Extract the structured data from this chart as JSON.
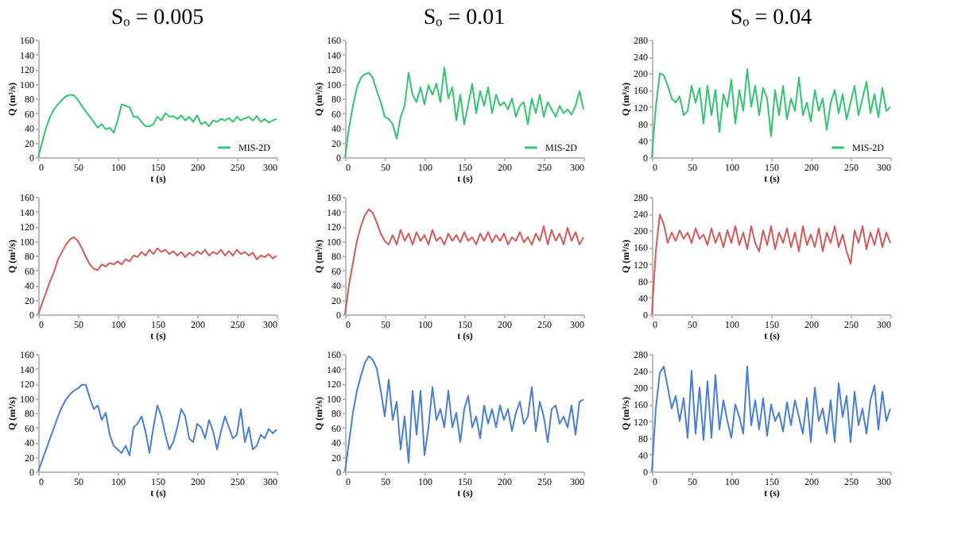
{
  "chart_data": [
    {
      "type": "line",
      "title": "Sₒ = 0.005",
      "xlabel": "t (s)",
      "ylabel": "Q (m³/s)",
      "x": [
        0,
        5,
        10,
        15,
        20,
        25,
        30,
        35,
        40,
        45,
        50,
        55,
        60,
        65,
        70,
        75,
        80,
        85,
        90,
        95,
        100,
        105,
        110,
        115,
        120,
        125,
        130,
        135,
        140,
        145,
        150,
        155,
        160,
        165,
        170,
        175,
        180,
        185,
        190,
        195,
        200,
        205,
        210,
        215,
        220,
        225,
        230,
        235,
        240,
        245,
        250,
        255,
        260,
        265,
        270,
        275,
        280,
        285,
        290,
        295,
        300
      ],
      "xlim": [
        0,
        300
      ],
      "xticks": [
        0,
        50,
        100,
        150,
        200,
        250,
        300
      ],
      "ylim": [
        0,
        160
      ],
      "yticks": [
        0,
        20,
        40,
        60,
        80,
        100,
        120,
        140,
        160
      ],
      "legend": "bottom right",
      "series": [
        {
          "name": "MIS-2D",
          "color": "#33c472",
          "values": [
            0,
            20,
            40,
            55,
            65,
            72,
            78,
            83,
            85,
            84,
            78,
            70,
            62,
            55,
            48,
            40,
            45,
            38,
            40,
            33,
            50,
            72,
            70,
            68,
            55,
            55,
            48,
            42,
            42,
            45,
            55,
            50,
            60,
            55,
            56,
            52,
            57,
            50,
            55,
            48,
            57,
            45,
            48,
            42,
            50,
            48,
            52,
            50,
            53,
            48,
            55,
            50,
            53,
            55,
            50,
            56,
            48,
            52,
            47,
            50,
            52
          ]
        }
      ]
    },
    {
      "type": "line",
      "title": "Sₒ = 0.01",
      "xlabel": "t (s)",
      "ylabel": "Q (m³/s)",
      "x": [
        0,
        5,
        10,
        15,
        20,
        25,
        30,
        35,
        40,
        45,
        50,
        55,
        60,
        65,
        70,
        75,
        80,
        85,
        90,
        95,
        100,
        105,
        110,
        115,
        120,
        125,
        130,
        135,
        140,
        145,
        150,
        155,
        160,
        165,
        170,
        175,
        180,
        185,
        190,
        195,
        200,
        205,
        210,
        215,
        220,
        225,
        230,
        235,
        240,
        245,
        250,
        255,
        260,
        265,
        270,
        275,
        280,
        285,
        290,
        295,
        300
      ],
      "xlim": [
        0,
        300
      ],
      "xticks": [
        0,
        50,
        100,
        150,
        200,
        250,
        300
      ],
      "ylim": [
        0,
        160
      ],
      "yticks": [
        0,
        20,
        40,
        60,
        80,
        100,
        120,
        140,
        160
      ],
      "legend": "bottom right",
      "series": [
        {
          "name": "MIS-2D",
          "color": "#33c472",
          "values": [
            0,
            40,
            70,
            95,
            108,
            113,
            115,
            108,
            90,
            75,
            55,
            52,
            45,
            25,
            55,
            70,
            115,
            85,
            75,
            95,
            72,
            98,
            85,
            100,
            75,
            122,
            80,
            95,
            50,
            85,
            45,
            72,
            100,
            60,
            90,
            70,
            95,
            60,
            85,
            70,
            75,
            65,
            80,
            55,
            70,
            75,
            45,
            80,
            60,
            85,
            55,
            75,
            65,
            55,
            70,
            60,
            65,
            58,
            70,
            90,
            65
          ]
        }
      ]
    },
    {
      "type": "line",
      "title": "Sₒ = 0.04",
      "xlabel": "t (s)",
      "ylabel": "Q (m³/s)",
      "x": [
        0,
        5,
        10,
        15,
        20,
        25,
        30,
        35,
        40,
        45,
        50,
        55,
        60,
        65,
        70,
        75,
        80,
        85,
        90,
        95,
        100,
        105,
        110,
        115,
        120,
        125,
        130,
        135,
        140,
        145,
        150,
        155,
        160,
        165,
        170,
        175,
        180,
        185,
        190,
        195,
        200,
        205,
        210,
        215,
        220,
        225,
        230,
        235,
        240,
        245,
        250,
        255,
        260,
        265,
        270,
        275,
        280,
        285,
        290,
        295,
        300
      ],
      "xlim": [
        0,
        300
      ],
      "xticks": [
        0,
        50,
        100,
        150,
        200,
        250,
        300
      ],
      "ylim": [
        0,
        280
      ],
      "yticks": [
        0,
        40,
        80,
        120,
        160,
        200,
        240,
        280
      ],
      "legend": "bottom right",
      "series": [
        {
          "name": "MIS-2D",
          "color": "#33c472",
          "values": [
            0,
            120,
            200,
            195,
            170,
            140,
            130,
            145,
            100,
            110,
            170,
            130,
            165,
            80,
            170,
            100,
            160,
            60,
            150,
            120,
            185,
            80,
            160,
            110,
            210,
            120,
            170,
            100,
            165,
            140,
            50,
            160,
            100,
            170,
            90,
            140,
            110,
            190,
            100,
            130,
            85,
            160,
            110,
            140,
            65,
            130,
            160,
            105,
            150,
            90,
            130,
            170,
            100,
            140,
            180,
            105,
            150,
            95,
            165,
            110,
            120
          ]
        }
      ]
    },
    {
      "type": "line",
      "xlabel": "t (s)",
      "ylabel": "Q (m³/s)",
      "x": [
        0,
        5,
        10,
        15,
        20,
        25,
        30,
        35,
        40,
        45,
        50,
        55,
        60,
        65,
        70,
        75,
        80,
        85,
        90,
        95,
        100,
        105,
        110,
        115,
        120,
        125,
        130,
        135,
        140,
        145,
        150,
        155,
        160,
        165,
        170,
        175,
        180,
        185,
        190,
        195,
        200,
        205,
        210,
        215,
        220,
        225,
        230,
        235,
        240,
        245,
        250,
        255,
        260,
        265,
        270,
        275,
        280,
        285,
        290,
        295,
        300
      ],
      "xlim": [
        0,
        300
      ],
      "xticks": [
        0,
        50,
        100,
        150,
        200,
        250,
        300
      ],
      "ylim": [
        0,
        160
      ],
      "yticks": [
        0,
        20,
        40,
        60,
        80,
        100,
        120,
        140,
        160
      ],
      "series": [
        {
          "color": "#d45a5a",
          "values": [
            0,
            15,
            30,
            45,
            58,
            75,
            85,
            95,
            102,
            105,
            100,
            90,
            78,
            68,
            62,
            60,
            68,
            65,
            70,
            68,
            72,
            68,
            75,
            72,
            80,
            78,
            85,
            80,
            88,
            82,
            90,
            85,
            88,
            82,
            86,
            80,
            85,
            78,
            84,
            80,
            86,
            82,
            88,
            80,
            85,
            82,
            88,
            80,
            86,
            80,
            88,
            82,
            85,
            80,
            84,
            75,
            80,
            78,
            82,
            76,
            80
          ]
        }
      ]
    },
    {
      "type": "line",
      "xlabel": "t (s)",
      "ylabel": "Q (m³/s)",
      "x": [
        0,
        5,
        10,
        15,
        20,
        25,
        30,
        35,
        40,
        45,
        50,
        55,
        60,
        65,
        70,
        75,
        80,
        85,
        90,
        95,
        100,
        105,
        110,
        115,
        120,
        125,
        130,
        135,
        140,
        145,
        150,
        155,
        160,
        165,
        170,
        175,
        180,
        185,
        190,
        195,
        200,
        205,
        210,
        215,
        220,
        225,
        230,
        235,
        240,
        245,
        250,
        255,
        260,
        265,
        270,
        275,
        280,
        285,
        290,
        295,
        300
      ],
      "xlim": [
        0,
        300
      ],
      "xticks": [
        0,
        50,
        100,
        150,
        200,
        250,
        300
      ],
      "ylim": [
        0,
        160
      ],
      "yticks": [
        0,
        20,
        40,
        60,
        80,
        100,
        120,
        140,
        160
      ],
      "series": [
        {
          "color": "#d45a5a",
          "values": [
            0,
            40,
            70,
            100,
            120,
            135,
            143,
            138,
            125,
            110,
            100,
            95,
            108,
            95,
            115,
            100,
            110,
            95,
            112,
            100,
            108,
            95,
            115,
            100,
            105,
            95,
            110,
            100,
            108,
            98,
            112,
            100,
            105,
            95,
            110,
            100,
            112,
            98,
            108,
            100,
            110,
            95,
            105,
            100,
            112,
            98,
            105,
            95,
            110,
            100,
            120,
            95,
            115,
            100,
            110,
            95,
            118,
            100,
            112,
            95,
            105
          ]
        }
      ]
    },
    {
      "type": "line",
      "xlabel": "t (s)",
      "ylabel": "Q (m³/s)",
      "x": [
        0,
        5,
        10,
        15,
        20,
        25,
        30,
        35,
        40,
        45,
        50,
        55,
        60,
        65,
        70,
        75,
        80,
        85,
        90,
        95,
        100,
        105,
        110,
        115,
        120,
        125,
        130,
        135,
        140,
        145,
        150,
        155,
        160,
        165,
        170,
        175,
        180,
        185,
        190,
        195,
        200,
        205,
        210,
        215,
        220,
        225,
        230,
        235,
        240,
        245,
        250,
        255,
        260,
        265,
        270,
        275,
        280,
        285,
        290,
        295,
        300
      ],
      "xlim": [
        0,
        300
      ],
      "xticks": [
        0,
        50,
        100,
        150,
        200,
        250,
        300
      ],
      "ylim": [
        0,
        280
      ],
      "yticks": [
        0,
        40,
        80,
        120,
        160,
        200,
        240,
        280
      ],
      "series": [
        {
          "color": "#d45a5a",
          "values": [
            0,
            150,
            238,
            215,
            170,
            195,
            175,
            200,
            180,
            195,
            170,
            205,
            180,
            190,
            165,
            205,
            170,
            195,
            160,
            200,
            170,
            210,
            165,
            195,
            155,
            210,
            170,
            150,
            200,
            165,
            210,
            155,
            195,
            170,
            205,
            160,
            195,
            150,
            210,
            165,
            190,
            160,
            205,
            150,
            195,
            170,
            210,
            160,
            190,
            150,
            120,
            200,
            170,
            210,
            155,
            195,
            165,
            205,
            160,
            195,
            170
          ]
        }
      ]
    },
    {
      "type": "line",
      "xlabel": "t (s)",
      "ylabel": "Q (m³/s)",
      "x": [
        0,
        5,
        10,
        15,
        20,
        25,
        30,
        35,
        40,
        45,
        50,
        55,
        60,
        65,
        70,
        75,
        80,
        85,
        90,
        95,
        100,
        105,
        110,
        115,
        120,
        125,
        130,
        135,
        140,
        145,
        150,
        155,
        160,
        165,
        170,
        175,
        180,
        185,
        190,
        195,
        200,
        205,
        210,
        215,
        220,
        225,
        230,
        235,
        240,
        245,
        250,
        255,
        260,
        265,
        270,
        275,
        280,
        285,
        290,
        295,
        300
      ],
      "xlim": [
        0,
        300
      ],
      "xticks": [
        0,
        50,
        100,
        150,
        200,
        250,
        300
      ],
      "ylim": [
        0,
        160
      ],
      "yticks": [
        0,
        20,
        40,
        60,
        80,
        100,
        120,
        140,
        160
      ],
      "series": [
        {
          "color": "#4a7fd0",
          "values": [
            0,
            15,
            30,
            45,
            60,
            75,
            88,
            98,
            105,
            110,
            113,
            118,
            118,
            100,
            85,
            90,
            70,
            80,
            50,
            35,
            30,
            25,
            35,
            22,
            60,
            65,
            75,
            55,
            25,
            60,
            90,
            75,
            50,
            30,
            40,
            60,
            85,
            75,
            45,
            40,
            65,
            60,
            45,
            70,
            55,
            30,
            55,
            75,
            60,
            45,
            50,
            85,
            40,
            60,
            30,
            35,
            50,
            45,
            58,
            52,
            57
          ]
        }
      ]
    },
    {
      "type": "line",
      "xlabel": "t (s)",
      "ylabel": "Q (m³/s)",
      "x": [
        0,
        5,
        10,
        15,
        20,
        25,
        30,
        35,
        40,
        45,
        50,
        55,
        60,
        65,
        70,
        75,
        80,
        85,
        90,
        95,
        100,
        105,
        110,
        115,
        120,
        125,
        130,
        135,
        140,
        145,
        150,
        155,
        160,
        165,
        170,
        175,
        180,
        185,
        190,
        195,
        200,
        205,
        210,
        215,
        220,
        225,
        230,
        235,
        240,
        245,
        250,
        255,
        260,
        265,
        270,
        275,
        280,
        285,
        290,
        295,
        300
      ],
      "xlim": [
        0,
        300
      ],
      "xticks": [
        0,
        50,
        100,
        150,
        200,
        250,
        300
      ],
      "ylim": [
        0,
        160
      ],
      "yticks": [
        0,
        20,
        40,
        60,
        80,
        100,
        120,
        140,
        160
      ],
      "series": [
        {
          "color": "#4a7fd0",
          "values": [
            0,
            40,
            80,
            110,
            130,
            148,
            157,
            152,
            140,
            110,
            75,
            125,
            70,
            95,
            30,
            75,
            12,
            110,
            50,
            110,
            22,
            60,
            115,
            70,
            85,
            60,
            110,
            60,
            80,
            40,
            85,
            103,
            60,
            75,
            45,
            90,
            65,
            85,
            60,
            90,
            70,
            85,
            55,
            80,
            95,
            65,
            75,
            115,
            55,
            95,
            75,
            40,
            85,
            90,
            65,
            75,
            60,
            90,
            50,
            95,
            98
          ]
        }
      ]
    },
    {
      "type": "line",
      "xlabel": "t (s)",
      "ylabel": "Q (m³/s)",
      "x": [
        0,
        5,
        10,
        15,
        20,
        25,
        30,
        35,
        40,
        45,
        50,
        55,
        60,
        65,
        70,
        75,
        80,
        85,
        90,
        95,
        100,
        105,
        110,
        115,
        120,
        125,
        130,
        135,
        140,
        145,
        150,
        155,
        160,
        165,
        170,
        175,
        180,
        185,
        190,
        195,
        200,
        205,
        210,
        215,
        220,
        225,
        230,
        235,
        240,
        245,
        250,
        255,
        260,
        265,
        270,
        275,
        280,
        285,
        290,
        295,
        300
      ],
      "xlim": [
        0,
        300
      ],
      "xticks": [
        0,
        50,
        100,
        150,
        200,
        250,
        300
      ],
      "ylim": [
        0,
        280
      ],
      "yticks": [
        0,
        40,
        80,
        120,
        160,
        200,
        240,
        280
      ],
      "series": [
        {
          "color": "#4a7fd0",
          "values": [
            0,
            150,
            235,
            250,
            200,
            150,
            180,
            120,
            175,
            80,
            240,
            90,
            200,
            75,
            215,
            80,
            230,
            100,
            170,
            120,
            80,
            160,
            130,
            90,
            250,
            110,
            170,
            100,
            175,
            85,
            160,
            120,
            140,
            95,
            165,
            110,
            170,
            130,
            90,
            175,
            70,
            200,
            120,
            150,
            90,
            170,
            70,
            210,
            130,
            180,
            70,
            190,
            110,
            150,
            90,
            170,
            205,
            100,
            190,
            120,
            150
          ]
        }
      ]
    }
  ]
}
